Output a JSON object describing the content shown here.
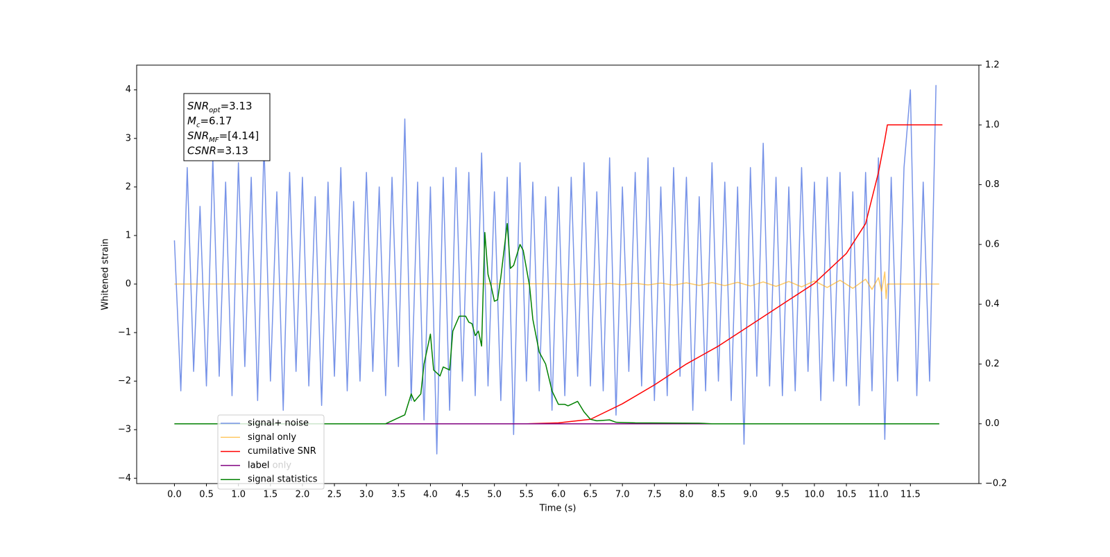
{
  "chart_data": {
    "type": "line",
    "xlabel": "Time (s)",
    "ylabel": "Whitened strain",
    "xlim": [
      -0.59,
      12.57
    ],
    "ylim": [
      -4.11,
      4.51
    ],
    "y2lim": [
      -0.2,
      1.2
    ],
    "xticks": [
      {
        "value": 0,
        "label": "0.0"
      },
      {
        "value": 0.5,
        "label": "0.5"
      },
      {
        "value": 1,
        "label": "1.0"
      },
      {
        "value": 1.5,
        "label": "1.5"
      },
      {
        "value": 2,
        "label": "2.0"
      },
      {
        "value": 2.5,
        "label": "2.5"
      },
      {
        "value": 3,
        "label": "3.0"
      },
      {
        "value": 3.5,
        "label": "3.5"
      },
      {
        "value": 4,
        "label": "4.0"
      },
      {
        "value": 4.5,
        "label": "4.5"
      },
      {
        "value": 5,
        "label": "5.0"
      },
      {
        "value": 5.5,
        "label": "5.5"
      },
      {
        "value": 6,
        "label": "6.0"
      },
      {
        "value": 6.5,
        "label": "6.5"
      },
      {
        "value": 7,
        "label": "7.0"
      },
      {
        "value": 7.5,
        "label": "7.5"
      },
      {
        "value": 8,
        "label": "8.0"
      },
      {
        "value": 8.5,
        "label": "8.5"
      },
      {
        "value": 9,
        "label": "9.0"
      },
      {
        "value": 9.5,
        "label": "9.5"
      },
      {
        "value": 10,
        "label": "10.0"
      },
      {
        "value": 10.5,
        "label": "10.5"
      },
      {
        "value": 11,
        "label": "11.0"
      },
      {
        "value": 11.5,
        "label": "11.5"
      }
    ],
    "yticks": [
      {
        "value": -4,
        "label": "−4"
      },
      {
        "value": -3,
        "label": "−3"
      },
      {
        "value": -2,
        "label": "−2"
      },
      {
        "value": -1,
        "label": "−1"
      },
      0,
      1,
      2,
      3,
      4
    ],
    "y2ticks": [
      {
        "value": -0.2,
        "label": "−0.2"
      },
      {
        "value": 0,
        "label": "0.0"
      },
      {
        "value": 0.2,
        "label": "0.2"
      },
      {
        "value": 0.4,
        "label": "0.4"
      },
      {
        "value": 0.6,
        "label": "0.6"
      },
      {
        "value": 0.8,
        "label": "0.8"
      },
      {
        "value": 1,
        "label": "1.0"
      },
      {
        "value": 1.2,
        "label": "1.2"
      }
    ],
    "annotation": [
      {
        "var": "SNR",
        "sub": "opt",
        "text": "=3.13"
      },
      {
        "var": "M",
        "sub": "c",
        "text": "=6.17"
      },
      {
        "var": "SNR",
        "sub": "MF",
        "text": "=[4.14]"
      },
      {
        "var": "CSNR",
        "text": "=3.13"
      }
    ],
    "legend_hidden_text": "label only",
    "series": [
      {
        "name": "signal+ noise",
        "color": "#7793e8",
        "axis": "y",
        "x": [
          0,
          0.1,
          0.2,
          0.3,
          0.4,
          0.5,
          0.6,
          0.7,
          0.8,
          0.9,
          1,
          1.1,
          1.2,
          1.3,
          1.4,
          1.5,
          1.6,
          1.7,
          1.8,
          1.9,
          2,
          2.1,
          2.2,
          2.3,
          2.4,
          2.5,
          2.6,
          2.7,
          2.8,
          2.9,
          3,
          3.1,
          3.2,
          3.3,
          3.4,
          3.5,
          3.6,
          3.7,
          3.8,
          3.9,
          4,
          4.1,
          4.2,
          4.3,
          4.4,
          4.5,
          4.6,
          4.7,
          4.8,
          4.9,
          5,
          5.1,
          5.2,
          5.3,
          5.4,
          5.5,
          5.6,
          5.7,
          5.8,
          5.9,
          6,
          6.1,
          6.2,
          6.3,
          6.4,
          6.5,
          6.6,
          6.7,
          6.8,
          6.9,
          7,
          7.1,
          7.2,
          7.3,
          7.4,
          7.5,
          7.6,
          7.7,
          7.8,
          7.9,
          8,
          8.1,
          8.2,
          8.3,
          8.4,
          8.5,
          8.6,
          8.7,
          8.8,
          8.9,
          9,
          9.1,
          9.2,
          9.3,
          9.4,
          9.5,
          9.6,
          9.7,
          9.8,
          9.9,
          10,
          10.1,
          10.2,
          10.3,
          10.4,
          10.5,
          10.6,
          10.7,
          10.8,
          10.9,
          11,
          11.1,
          11.2,
          11.3,
          11.4,
          11.5,
          11.6,
          11.7,
          11.8,
          11.9
        ],
        "values": [
          0.9,
          -2.2,
          2.4,
          -1.8,
          1.6,
          -2.1,
          2.6,
          -1.9,
          2.1,
          -2.3,
          2.5,
          -1.7,
          2.2,
          -2.4,
          2.9,
          -2.0,
          1.9,
          -2.6,
          2.3,
          -1.8,
          2.2,
          -2.1,
          1.8,
          -2.5,
          2.1,
          -1.9,
          2.4,
          -2.2,
          1.7,
          -2.0,
          2.3,
          -1.8,
          2.0,
          -2.3,
          2.2,
          -1.7,
          3.4,
          -2.4,
          2.1,
          -2.8,
          2.0,
          -3.5,
          2.2,
          -2.6,
          2.4,
          -2.0,
          2.3,
          -2.3,
          2.7,
          -2.1,
          1.9,
          -2.4,
          2.2,
          -3.1,
          2.5,
          -2.0,
          2.1,
          -2.2,
          1.8,
          -2.6,
          2.0,
          -2.3,
          2.2,
          -1.9,
          2.5,
          -2.1,
          1.9,
          -2.2,
          2.6,
          -2.7,
          2.0,
          -1.8,
          2.3,
          -2.1,
          2.6,
          -2.4,
          2.0,
          -2.3,
          2.4,
          -1.9,
          2.2,
          -2.6,
          1.8,
          -2.2,
          2.5,
          -2.0,
          2.1,
          -2.4,
          2.0,
          -3.3,
          2.4,
          -1.9,
          2.9,
          -2.1,
          2.2,
          -2.3,
          2.0,
          -2.2,
          2.4,
          -1.8,
          2.1,
          -2.4,
          2.2,
          -2.0,
          2.3,
          -2.1,
          1.9,
          -2.5,
          2.3,
          -2.2,
          2.6,
          -3.2,
          2.2,
          -2.0,
          2.4,
          4.0,
          -2.3,
          2.1,
          -2.0,
          4.1
        ]
      },
      {
        "name": "signal only",
        "color": "#ffa500",
        "axis": "y",
        "x": [
          0,
          6,
          6.2,
          6.4,
          6.6,
          6.8,
          7,
          7.2,
          7.4,
          7.6,
          7.8,
          8,
          8.2,
          8.4,
          8.6,
          8.8,
          9,
          9.2,
          9.4,
          9.6,
          9.8,
          10,
          10.2,
          10.4,
          10.6,
          10.8,
          10.9,
          11,
          11.05,
          11.1,
          11.12,
          11.14,
          11.95
        ],
        "values": [
          0,
          0.006,
          -0.007,
          0.008,
          -0.01,
          0.012,
          -0.014,
          0.016,
          -0.018,
          0.02,
          -0.022,
          0.025,
          -0.028,
          0.03,
          -0.033,
          0.036,
          -0.04,
          0.044,
          -0.048,
          0.053,
          -0.058,
          0.064,
          -0.07,
          0.078,
          -0.088,
          0.1,
          -0.11,
          0.13,
          -0.15,
          0.25,
          -0.3,
          0,
          0
        ]
      },
      {
        "name": "cumilative SNR",
        "color": "#ff0000",
        "axis": "y2",
        "x": [
          0,
          5.5,
          6,
          6.5,
          7,
          7.5,
          8,
          8.5,
          9,
          9.5,
          10,
          10.5,
          10.8,
          11,
          11.1,
          11.14,
          12
        ],
        "values": [
          0,
          0,
          0.003,
          0.015,
          0.067,
          0.13,
          0.2,
          0.26,
          0.33,
          0.4,
          0.47,
          0.57,
          0.67,
          0.84,
          0.95,
          1,
          1
        ]
      },
      {
        "name": "label",
        "color": "#800080",
        "axis": "y2",
        "x": [
          0,
          11.95
        ],
        "values": [
          0,
          0
        ]
      },
      {
        "name": "signal statistics",
        "color": "#008000",
        "axis": "y2",
        "x": [
          0,
          3.3,
          3.5,
          3.6,
          3.7,
          3.75,
          3.85,
          3.9,
          4,
          4.05,
          4.15,
          4.2,
          4.3,
          4.35,
          4.45,
          4.55,
          4.6,
          4.65,
          4.7,
          4.75,
          4.8,
          4.85,
          4.9,
          4.95,
          5,
          5.05,
          5.1,
          5.2,
          5.25,
          5.3,
          5.4,
          5.45,
          5.55,
          5.6,
          5.7,
          5.8,
          5.9,
          6,
          6.1,
          6.15,
          6.2,
          6.3,
          6.4,
          6.5,
          6.6,
          6.8,
          6.9,
          7.2,
          8.2,
          8.4,
          11.95
        ],
        "values": [
          0,
          0,
          0.02,
          0.03,
          0.1,
          0.075,
          0.1,
          0.2,
          0.3,
          0.18,
          0.16,
          0.19,
          0.18,
          0.31,
          0.36,
          0.36,
          0.34,
          0.335,
          0.295,
          0.31,
          0.26,
          0.64,
          0.5,
          0.46,
          0.41,
          0.415,
          0.49,
          0.67,
          0.52,
          0.53,
          0.6,
          0.58,
          0.46,
          0.35,
          0.24,
          0.2,
          0.11,
          0.065,
          0.065,
          0.06,
          0.065,
          0.075,
          0.04,
          0.015,
          0.01,
          0.013,
          0.005,
          0.003,
          0.002,
          0,
          0
        ]
      }
    ]
  }
}
